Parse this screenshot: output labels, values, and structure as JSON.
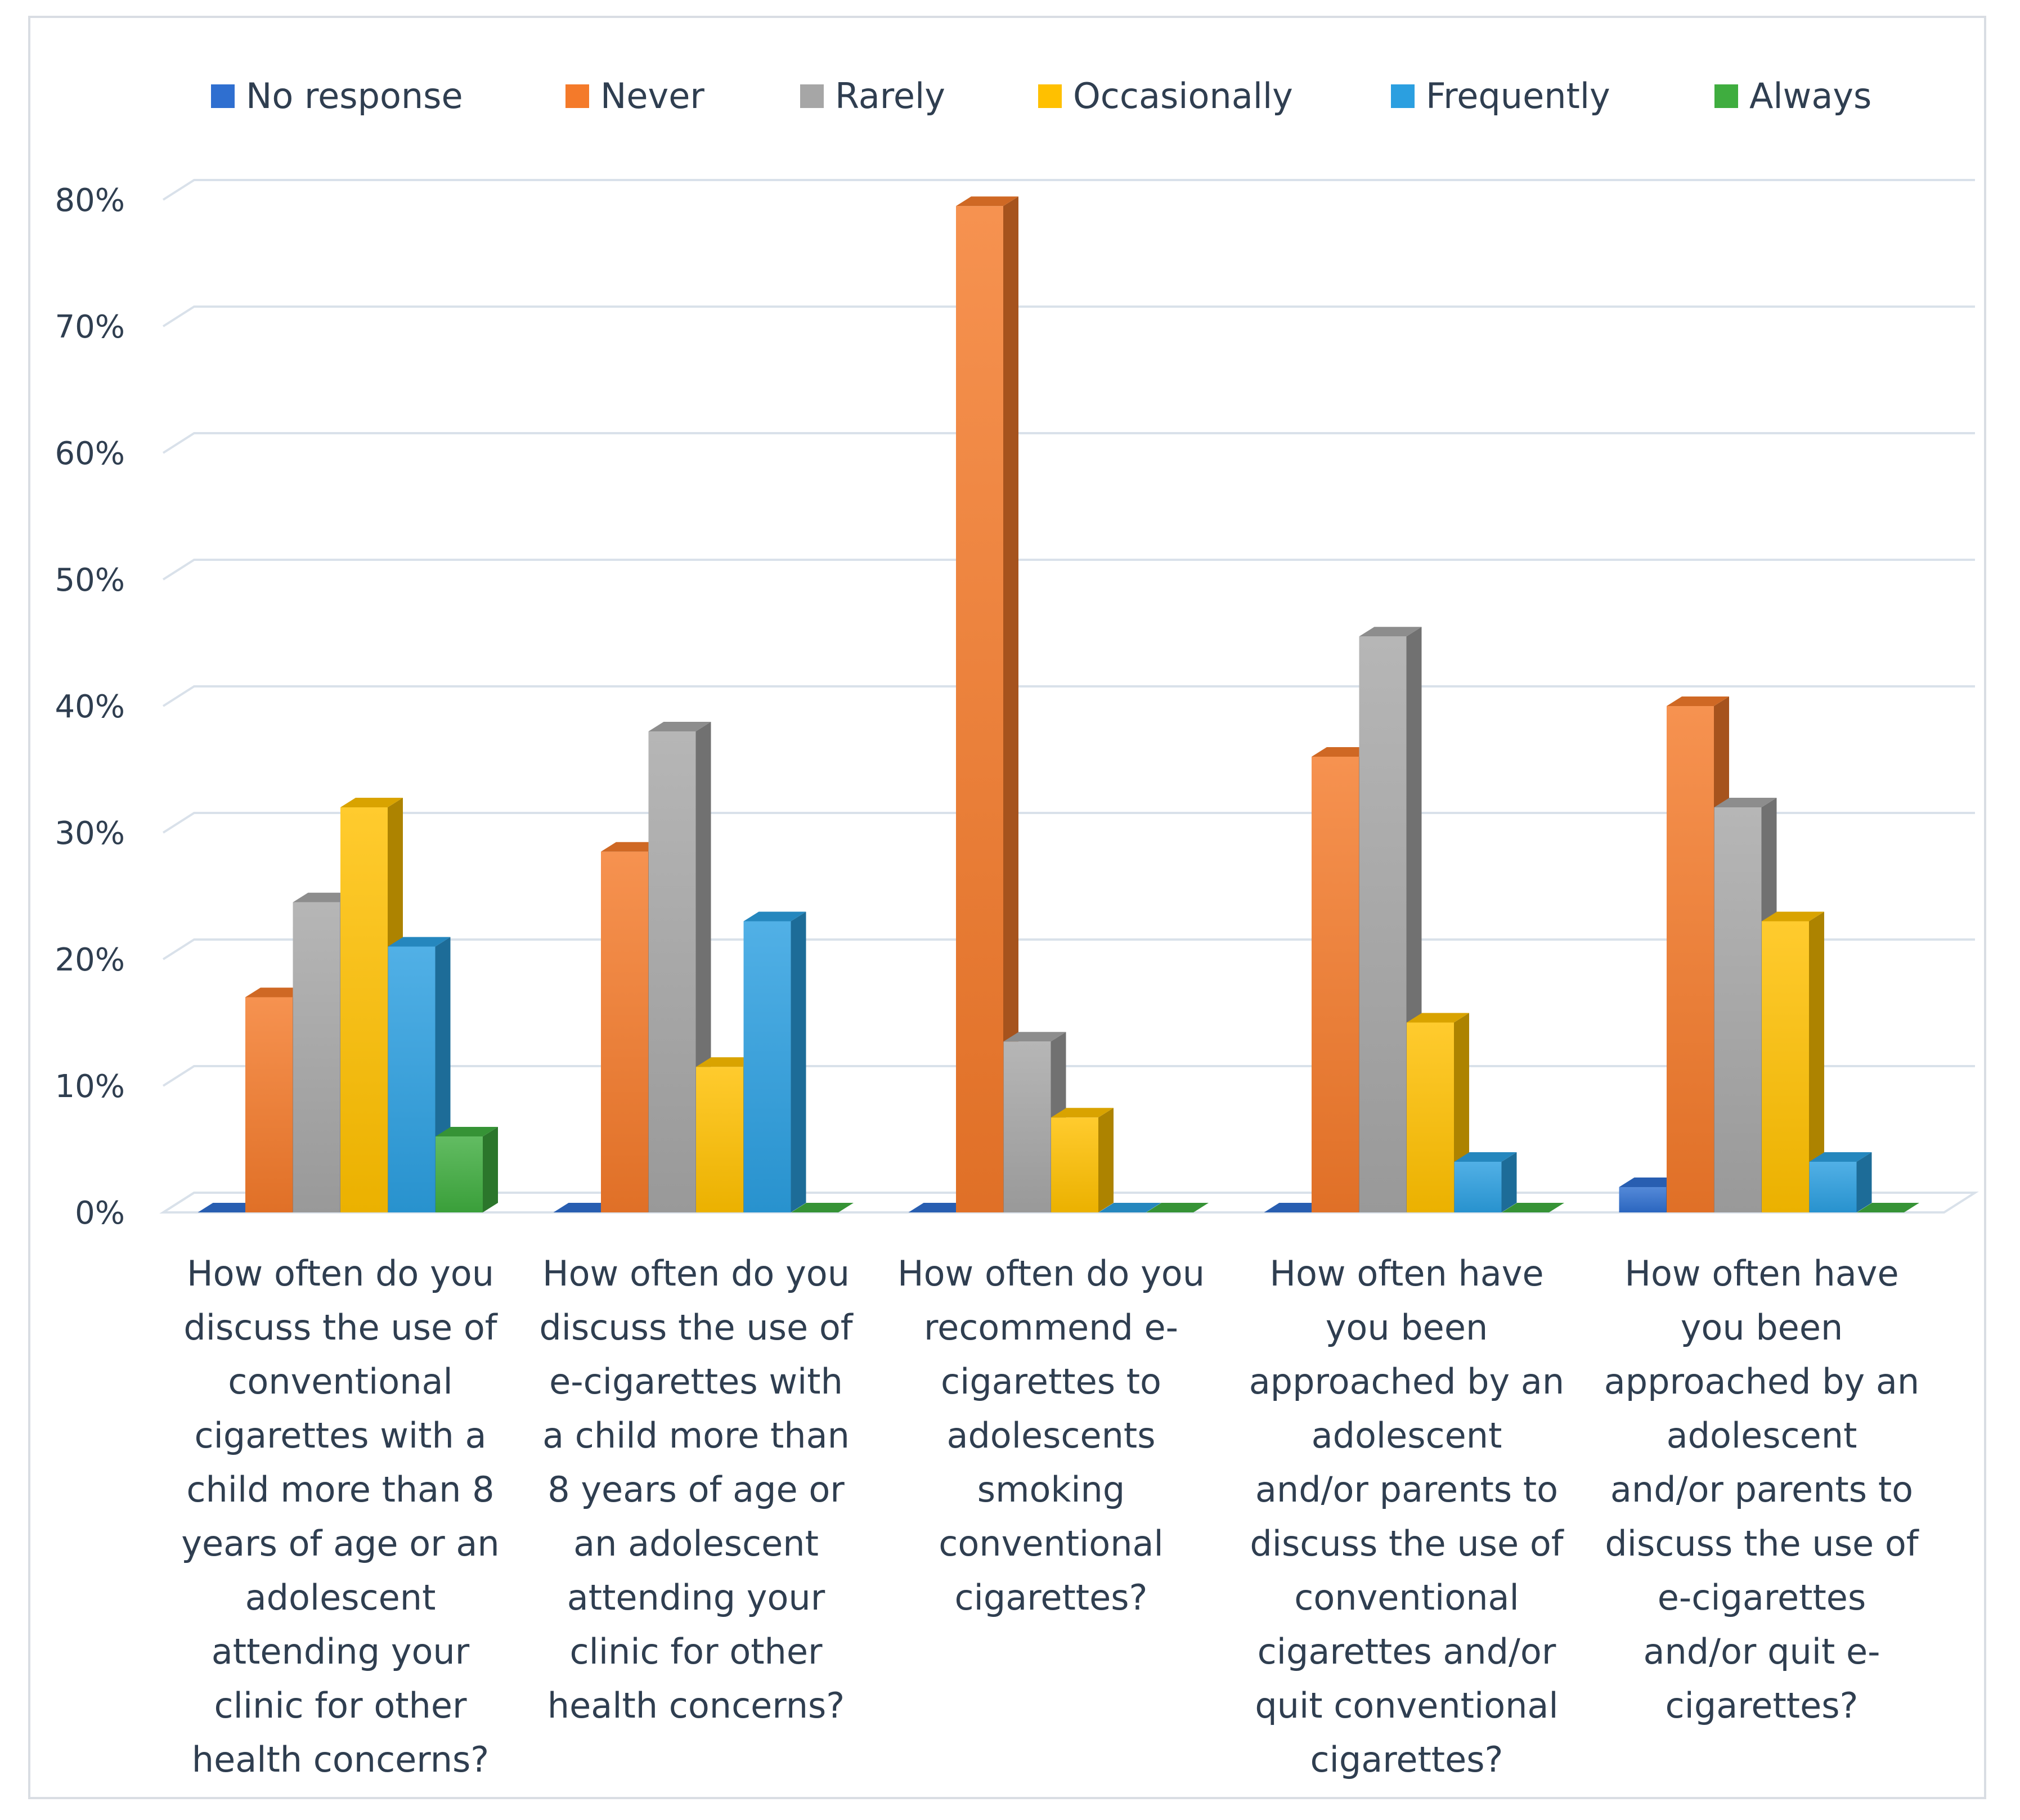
{
  "chart_data": {
    "type": "bar",
    "title": "",
    "xlabel": "",
    "ylabel": "",
    "ylim": [
      0,
      80
    ],
    "y_tick_labels": [
      "0%",
      "10%",
      "20%",
      "30%",
      "40%",
      "50%",
      "60%",
      "70%",
      "80%"
    ],
    "grid": true,
    "legend_position": "top",
    "categories": [
      [
        "How often do you",
        "discuss the use of",
        "conventional",
        "cigarettes with a",
        "child more than 8",
        "years of age or an",
        "adolescent",
        "attending your",
        "clinic for other",
        "health concerns?"
      ],
      [
        "How often do you",
        "discuss the use of",
        "e-cigarettes with",
        "a child more than",
        "8 years of age or",
        "an adolescent",
        "attending your",
        "clinic for other",
        "health concerns?"
      ],
      [
        "How often do you",
        "recommend e-",
        "cigarettes to",
        "adolescents",
        "smoking",
        "conventional",
        "cigarettes?"
      ],
      [
        "How often have",
        "you been",
        "approached by an",
        "adolescent",
        "and/or parents to",
        "discuss the use of",
        "conventional",
        "cigarettes and/or",
        "quit conventional",
        "cigarettes?"
      ],
      [
        "How often have",
        "you been",
        "approached by an",
        "adolescent",
        "and/or parents to",
        "discuss the use of",
        "e-cigarettes",
        "and/or quit e-",
        "cigarettes?"
      ]
    ],
    "series": [
      {
        "name": "No response",
        "color": "#2f6fd0",
        "values": [
          0,
          0,
          0,
          0,
          2
        ]
      },
      {
        "name": "Never",
        "color": "#f47a2a",
        "values": [
          17,
          28.5,
          79.5,
          36,
          40
        ]
      },
      {
        "name": "Rarely",
        "color": "#a6a6a6",
        "values": [
          24.5,
          38,
          13.5,
          45.5,
          32
        ]
      },
      {
        "name": "Occasionally",
        "color": "#ffc000",
        "values": [
          32,
          11.5,
          7.5,
          15,
          23
        ]
      },
      {
        "name": "Frequently",
        "color": "#2b9fe0",
        "values": [
          21,
          23,
          0,
          4,
          4
        ]
      },
      {
        "name": "Always",
        "color": "#3fad3f",
        "values": [
          6,
          0,
          0,
          0,
          0
        ]
      }
    ]
  }
}
